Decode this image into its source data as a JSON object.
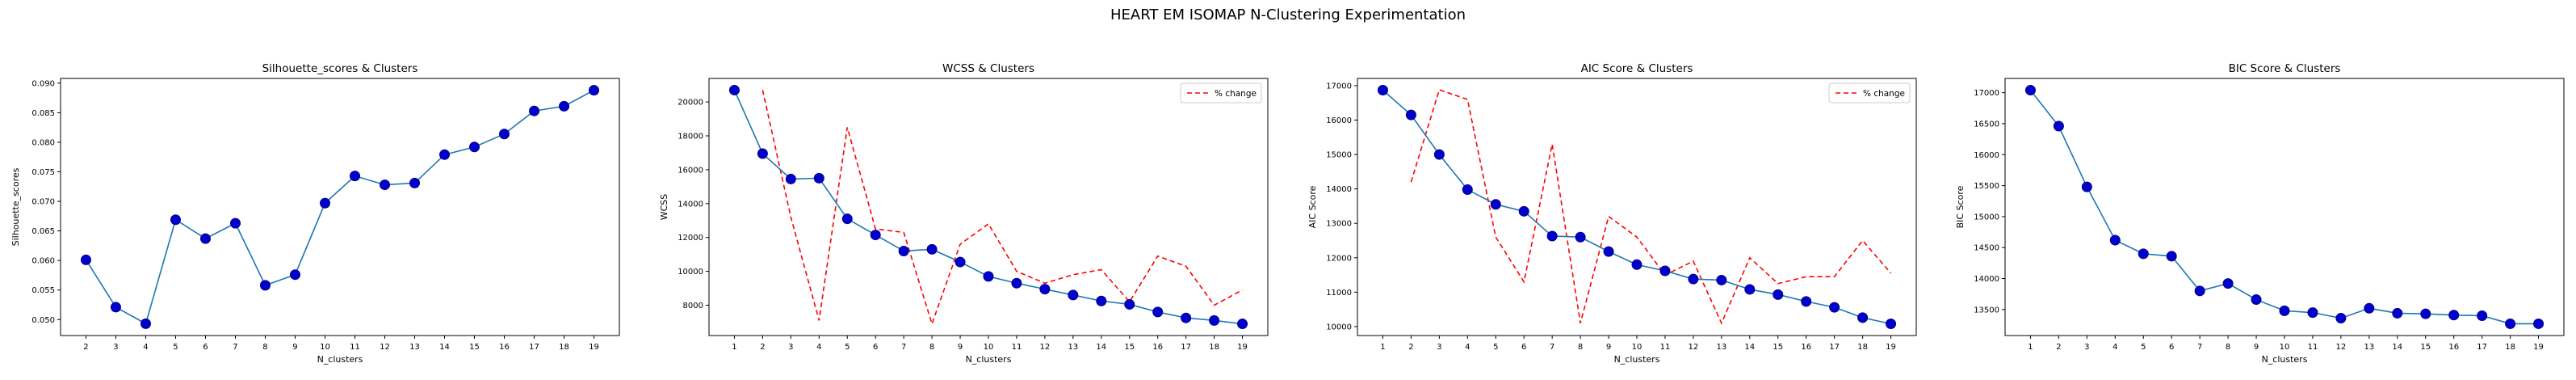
{
  "figure": {
    "title": "HEART EM ISOMAP N-Clustering Experimentation"
  },
  "colors": {
    "line": "#1f77b4",
    "marker_fill": "#0000cd",
    "marker_edge": "#00008b",
    "pct_change": "#ff0000",
    "axes": "#000000"
  },
  "chart_data": [
    {
      "type": "line",
      "title": "Silhouette_scores & Clusters",
      "xlabel": "N_clusters",
      "ylabel": "Silhouette_scores",
      "x": [
        2,
        3,
        4,
        5,
        6,
        7,
        8,
        9,
        10,
        11,
        12,
        13,
        14,
        15,
        16,
        17,
        18,
        19
      ],
      "series": [
        {
          "values": [
            0.0601,
            0.0521,
            0.0493,
            0.0669,
            0.0637,
            0.0663,
            0.0558,
            0.0576,
            0.0697,
            0.0743,
            0.0728,
            0.0731,
            0.0779,
            0.0792,
            0.0814,
            0.0853,
            0.0861,
            0.0888
          ]
        }
      ],
      "xlim": [
        1.15,
        19.85
      ],
      "ylim": [
        0.0473,
        0.0908
      ],
      "yticks": [
        0.05,
        0.055,
        0.06,
        0.065,
        0.07,
        0.075,
        0.08,
        0.085,
        0.09
      ],
      "ytick_labels": [
        "0.050",
        "0.055",
        "0.060",
        "0.065",
        "0.070",
        "0.075",
        "0.080",
        "0.085",
        "0.090"
      ],
      "legend": null
    },
    {
      "type": "line",
      "title": "WCSS & Clusters",
      "xlabel": "N_clusters",
      "ylabel": "WCSS",
      "x": [
        1,
        2,
        3,
        4,
        5,
        6,
        7,
        8,
        9,
        10,
        11,
        12,
        13,
        14,
        15,
        16,
        17,
        18,
        19
      ],
      "series": [
        {
          "values": [
            20700,
            16950,
            15450,
            15500,
            13100,
            12150,
            11200,
            11300,
            10550,
            9700,
            9300,
            8950,
            8600,
            8250,
            8050,
            7600,
            7250,
            7100,
            6900
          ]
        }
      ],
      "pct_change": {
        "name": "% change",
        "x": [
          2,
          3,
          4,
          5,
          6,
          7,
          8,
          9,
          10,
          11,
          12,
          13,
          14,
          15,
          16,
          17,
          18,
          19
        ],
        "values": [
          20700,
          13200,
          7100,
          18500,
          12500,
          12300,
          6900,
          11600,
          12800,
          10000,
          9300,
          9800,
          10100,
          8200,
          10900,
          10300,
          8000,
          8900
        ]
      },
      "xlim": [
        0.1,
        19.9
      ],
      "ylim": [
        6210,
        21390
      ],
      "yticks": [
        8000,
        10000,
        12000,
        14000,
        16000,
        18000,
        20000
      ],
      "ytick_labels": [
        "8000",
        "10000",
        "12000",
        "14000",
        "16000",
        "18000",
        "20000"
      ],
      "legend": "top-right"
    },
    {
      "type": "line",
      "title": "AIC Score & Clusters",
      "xlabel": "N_clusters",
      "ylabel": "AIC Score",
      "x": [
        1,
        2,
        3,
        4,
        5,
        6,
        7,
        8,
        9,
        10,
        11,
        12,
        13,
        14,
        15,
        16,
        17,
        18,
        19
      ],
      "series": [
        {
          "values": [
            16870,
            16150,
            15000,
            13980,
            13550,
            13350,
            12630,
            12600,
            12180,
            11800,
            11620,
            11380,
            11350,
            11080,
            10930,
            10730,
            10560,
            10260,
            10080
          ]
        }
      ],
      "pct_change": {
        "name": "% change",
        "x": [
          2,
          3,
          4,
          5,
          6,
          7,
          8,
          9,
          10,
          11,
          12,
          13,
          14,
          15,
          16,
          17,
          18,
          19
        ],
        "values": [
          14200,
          16880,
          16600,
          12600,
          11300,
          15300,
          10100,
          13200,
          12600,
          11500,
          11900,
          10100,
          12000,
          11250,
          11450,
          11450,
          12500,
          11550
        ]
      },
      "xlim": [
        0.1,
        19.9
      ],
      "ylim": [
        9740,
        17210
      ],
      "yticks": [
        10000,
        11000,
        12000,
        13000,
        14000,
        15000,
        16000,
        17000
      ],
      "ytick_labels": [
        "10000",
        "11000",
        "12000",
        "13000",
        "14000",
        "15000",
        "16000",
        "17000"
      ],
      "legend": "top-right"
    },
    {
      "type": "line",
      "title": "BIC Score & Clusters",
      "xlabel": "N_clusters",
      "ylabel": "BIC Score",
      "x": [
        1,
        2,
        3,
        4,
        5,
        6,
        7,
        8,
        9,
        10,
        11,
        12,
        13,
        14,
        15,
        16,
        17,
        18,
        19
      ],
      "series": [
        {
          "values": [
            17040,
            16460,
            15480,
            14620,
            14400,
            14360,
            13800,
            13920,
            13660,
            13480,
            13450,
            13360,
            13520,
            13440,
            13430,
            13410,
            13400,
            13270,
            13270
          ]
        }
      ],
      "xlim": [
        0.1,
        19.9
      ],
      "ylim": [
        13080,
        17230
      ],
      "yticks": [
        13500,
        14000,
        14500,
        15000,
        15500,
        16000,
        16500,
        17000
      ],
      "ytick_labels": [
        "13500",
        "14000",
        "14500",
        "15000",
        "15500",
        "16000",
        "16500",
        "17000"
      ],
      "legend": null
    }
  ]
}
